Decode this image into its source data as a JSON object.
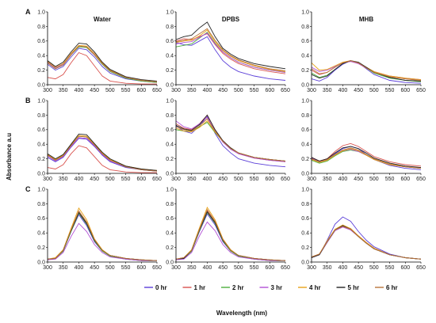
{
  "chart_data": {
    "type": "line",
    "ylabel": "Absorbance a.u",
    "xlabel": "Wavelength (nm)",
    "xlim": [
      300,
      650
    ],
    "xticks": [
      "300",
      "350",
      "400",
      "450",
      "500",
      "550",
      "600",
      "650"
    ],
    "ylim": [
      0.0,
      1.0
    ],
    "yticks": [
      "0.0",
      "0.2",
      "0.4",
      "0.6",
      "0.8",
      "1.0"
    ],
    "column_titles": [
      "Water",
      "DPBS",
      "MHB"
    ],
    "row_labels": [
      "A",
      "B",
      "C"
    ],
    "legend": {
      "placement": "bottom",
      "entries": [
        {
          "name": "0 hr",
          "color": "#5b3fd8"
        },
        {
          "name": "1 hr",
          "color": "#d9534f"
        },
        {
          "name": "2 hr",
          "color": "#4caf3d"
        },
        {
          "name": "3 hr",
          "color": "#b24fd6"
        },
        {
          "name": "4 hr",
          "color": "#e8a21a"
        },
        {
          "name": "5 hr",
          "color": "#222222"
        },
        {
          "name": "6 hr",
          "color": "#b8743c"
        }
      ]
    },
    "x": [
      300,
      325,
      350,
      375,
      400,
      425,
      450,
      475,
      500,
      550,
      600,
      650
    ],
    "panels": [
      {
        "row": "A",
        "column": "Water",
        "series": [
          [
            0.28,
            0.2,
            0.25,
            0.38,
            0.5,
            0.48,
            0.38,
            0.25,
            0.16,
            0.08,
            0.05,
            0.03
          ],
          [
            0.1,
            0.08,
            0.14,
            0.3,
            0.44,
            0.4,
            0.26,
            0.12,
            0.05,
            0.02,
            0.01,
            0.01
          ],
          [
            0.3,
            0.22,
            0.27,
            0.41,
            0.52,
            0.51,
            0.41,
            0.28,
            0.18,
            0.09,
            0.05,
            0.03
          ],
          [
            0.31,
            0.23,
            0.28,
            0.42,
            0.53,
            0.52,
            0.42,
            0.29,
            0.19,
            0.1,
            0.06,
            0.04
          ],
          [
            0.32,
            0.24,
            0.29,
            0.43,
            0.54,
            0.53,
            0.43,
            0.3,
            0.2,
            0.1,
            0.06,
            0.04
          ],
          [
            0.33,
            0.25,
            0.31,
            0.45,
            0.57,
            0.56,
            0.45,
            0.31,
            0.21,
            0.11,
            0.07,
            0.05
          ],
          [
            0.3,
            0.22,
            0.27,
            0.41,
            0.53,
            0.52,
            0.41,
            0.29,
            0.19,
            0.1,
            0.06,
            0.04
          ]
        ]
      },
      {
        "row": "A",
        "column": "DPBS",
        "series": [
          [
            0.58,
            0.55,
            0.54,
            0.6,
            0.66,
            0.48,
            0.33,
            0.24,
            0.18,
            0.12,
            0.08,
            0.06
          ],
          [
            0.6,
            0.63,
            0.62,
            0.66,
            0.7,
            0.55,
            0.43,
            0.35,
            0.29,
            0.22,
            0.18,
            0.15
          ],
          [
            0.52,
            0.54,
            0.56,
            0.64,
            0.72,
            0.57,
            0.45,
            0.37,
            0.31,
            0.24,
            0.2,
            0.17
          ],
          [
            0.56,
            0.58,
            0.59,
            0.65,
            0.71,
            0.56,
            0.45,
            0.37,
            0.31,
            0.24,
            0.2,
            0.17
          ],
          [
            0.58,
            0.6,
            0.61,
            0.67,
            0.75,
            0.59,
            0.47,
            0.39,
            0.33,
            0.26,
            0.21,
            0.18
          ],
          [
            0.62,
            0.66,
            0.68,
            0.78,
            0.86,
            0.66,
            0.5,
            0.42,
            0.36,
            0.29,
            0.25,
            0.22
          ],
          [
            0.59,
            0.61,
            0.63,
            0.7,
            0.77,
            0.61,
            0.48,
            0.4,
            0.34,
            0.27,
            0.22,
            0.19
          ]
        ]
      },
      {
        "row": "A",
        "column": "MHB",
        "series": [
          [
            0.08,
            0.05,
            0.1,
            0.2,
            0.28,
            0.33,
            0.3,
            0.22,
            0.14,
            0.06,
            0.03,
            0.02
          ],
          [
            0.2,
            0.14,
            0.17,
            0.24,
            0.3,
            0.32,
            0.29,
            0.23,
            0.17,
            0.11,
            0.08,
            0.06
          ],
          [
            0.16,
            0.1,
            0.13,
            0.21,
            0.29,
            0.33,
            0.3,
            0.23,
            0.16,
            0.09,
            0.06,
            0.04
          ],
          [
            0.24,
            0.18,
            0.2,
            0.25,
            0.3,
            0.32,
            0.29,
            0.23,
            0.18,
            0.12,
            0.09,
            0.07
          ],
          [
            0.3,
            0.2,
            0.21,
            0.26,
            0.31,
            0.33,
            0.3,
            0.24,
            0.18,
            0.12,
            0.09,
            0.07
          ],
          [
            0.14,
            0.09,
            0.12,
            0.21,
            0.29,
            0.33,
            0.31,
            0.24,
            0.17,
            0.1,
            0.06,
            0.05
          ],
          [
            0.22,
            0.15,
            0.17,
            0.24,
            0.3,
            0.33,
            0.3,
            0.23,
            0.17,
            0.11,
            0.08,
            0.06
          ]
        ]
      },
      {
        "row": "B",
        "column": "Water",
        "series": [
          [
            0.22,
            0.16,
            0.22,
            0.36,
            0.48,
            0.47,
            0.37,
            0.25,
            0.16,
            0.08,
            0.05,
            0.03
          ],
          [
            0.08,
            0.06,
            0.12,
            0.27,
            0.38,
            0.35,
            0.23,
            0.11,
            0.05,
            0.02,
            0.01,
            0.01
          ],
          [
            0.25,
            0.18,
            0.24,
            0.38,
            0.51,
            0.5,
            0.39,
            0.27,
            0.18,
            0.09,
            0.05,
            0.03
          ],
          [
            0.24,
            0.17,
            0.23,
            0.37,
            0.49,
            0.48,
            0.38,
            0.26,
            0.17,
            0.09,
            0.05,
            0.03
          ],
          [
            0.26,
            0.19,
            0.25,
            0.39,
            0.52,
            0.51,
            0.4,
            0.28,
            0.19,
            0.1,
            0.06,
            0.04
          ],
          [
            0.27,
            0.2,
            0.26,
            0.4,
            0.54,
            0.53,
            0.41,
            0.29,
            0.2,
            0.1,
            0.06,
            0.04
          ],
          [
            0.25,
            0.18,
            0.24,
            0.38,
            0.51,
            0.5,
            0.39,
            0.27,
            0.18,
            0.09,
            0.05,
            0.03
          ]
        ]
      },
      {
        "row": "B",
        "column": "DPBS",
        "series": [
          [
            0.65,
            0.58,
            0.55,
            0.65,
            0.78,
            0.55,
            0.38,
            0.28,
            0.2,
            0.14,
            0.11,
            0.09
          ],
          [
            0.68,
            0.62,
            0.6,
            0.68,
            0.8,
            0.6,
            0.44,
            0.34,
            0.27,
            0.21,
            0.18,
            0.16
          ],
          [
            0.6,
            0.58,
            0.58,
            0.64,
            0.7,
            0.56,
            0.44,
            0.34,
            0.28,
            0.22,
            0.19,
            0.17
          ],
          [
            0.72,
            0.64,
            0.61,
            0.68,
            0.77,
            0.58,
            0.43,
            0.33,
            0.27,
            0.21,
            0.18,
            0.16
          ],
          [
            0.62,
            0.58,
            0.57,
            0.63,
            0.72,
            0.57,
            0.44,
            0.35,
            0.28,
            0.22,
            0.19,
            0.17
          ],
          [
            0.66,
            0.61,
            0.59,
            0.67,
            0.8,
            0.6,
            0.45,
            0.35,
            0.28,
            0.22,
            0.19,
            0.17
          ],
          [
            0.64,
            0.6,
            0.58,
            0.65,
            0.75,
            0.58,
            0.44,
            0.34,
            0.28,
            0.22,
            0.19,
            0.17
          ]
        ]
      },
      {
        "row": "B",
        "column": "MHB",
        "series": [
          [
            0.2,
            0.16,
            0.19,
            0.27,
            0.34,
            0.37,
            0.34,
            0.26,
            0.19,
            0.11,
            0.07,
            0.05
          ],
          [
            0.22,
            0.17,
            0.2,
            0.3,
            0.38,
            0.41,
            0.37,
            0.3,
            0.23,
            0.16,
            0.12,
            0.1
          ],
          [
            0.18,
            0.14,
            0.17,
            0.24,
            0.3,
            0.32,
            0.3,
            0.25,
            0.19,
            0.12,
            0.09,
            0.07
          ],
          [
            0.21,
            0.16,
            0.19,
            0.26,
            0.31,
            0.33,
            0.3,
            0.25,
            0.19,
            0.12,
            0.09,
            0.07
          ],
          [
            0.19,
            0.15,
            0.18,
            0.25,
            0.31,
            0.34,
            0.31,
            0.25,
            0.19,
            0.12,
            0.09,
            0.07
          ],
          [
            0.22,
            0.17,
            0.2,
            0.28,
            0.35,
            0.37,
            0.34,
            0.28,
            0.21,
            0.14,
            0.1,
            0.08
          ],
          [
            0.2,
            0.16,
            0.19,
            0.26,
            0.32,
            0.35,
            0.32,
            0.26,
            0.2,
            0.13,
            0.09,
            0.07
          ]
        ]
      },
      {
        "row": "C",
        "column": "Water",
        "series": [
          [
            0.04,
            0.05,
            0.15,
            0.42,
            0.65,
            0.5,
            0.28,
            0.15,
            0.08,
            0.04,
            0.02,
            0.02
          ],
          [
            0.04,
            0.05,
            0.16,
            0.44,
            0.7,
            0.54,
            0.3,
            0.16,
            0.09,
            0.05,
            0.03,
            0.02
          ],
          [
            0.04,
            0.05,
            0.15,
            0.42,
            0.67,
            0.52,
            0.29,
            0.15,
            0.08,
            0.04,
            0.02,
            0.02
          ],
          [
            0.03,
            0.04,
            0.13,
            0.35,
            0.53,
            0.42,
            0.24,
            0.13,
            0.07,
            0.04,
            0.02,
            0.02
          ],
          [
            0.04,
            0.06,
            0.17,
            0.46,
            0.74,
            0.58,
            0.32,
            0.17,
            0.09,
            0.05,
            0.03,
            0.02
          ],
          [
            0.04,
            0.05,
            0.16,
            0.43,
            0.68,
            0.53,
            0.3,
            0.16,
            0.09,
            0.05,
            0.03,
            0.02
          ],
          [
            0.04,
            0.05,
            0.16,
            0.44,
            0.7,
            0.55,
            0.31,
            0.16,
            0.09,
            0.05,
            0.03,
            0.02
          ]
        ]
      },
      {
        "row": "C",
        "column": "DPBS",
        "series": [
          [
            0.04,
            0.05,
            0.15,
            0.42,
            0.66,
            0.51,
            0.28,
            0.15,
            0.08,
            0.04,
            0.02,
            0.02
          ],
          [
            0.04,
            0.06,
            0.16,
            0.45,
            0.71,
            0.55,
            0.3,
            0.16,
            0.09,
            0.05,
            0.03,
            0.02
          ],
          [
            0.04,
            0.05,
            0.15,
            0.43,
            0.68,
            0.53,
            0.29,
            0.15,
            0.08,
            0.04,
            0.02,
            0.02
          ],
          [
            0.03,
            0.04,
            0.13,
            0.36,
            0.55,
            0.43,
            0.24,
            0.13,
            0.07,
            0.04,
            0.02,
            0.02
          ],
          [
            0.04,
            0.06,
            0.17,
            0.47,
            0.75,
            0.58,
            0.32,
            0.17,
            0.09,
            0.05,
            0.03,
            0.02
          ],
          [
            0.04,
            0.05,
            0.16,
            0.44,
            0.69,
            0.54,
            0.3,
            0.16,
            0.09,
            0.05,
            0.03,
            0.02
          ],
          [
            0.04,
            0.06,
            0.16,
            0.45,
            0.72,
            0.56,
            0.31,
            0.16,
            0.09,
            0.05,
            0.03,
            0.02
          ]
        ]
      },
      {
        "row": "C",
        "column": "MHB",
        "series": [
          [
            0.06,
            0.1,
            0.3,
            0.52,
            0.62,
            0.56,
            0.42,
            0.3,
            0.21,
            0.11,
            0.06,
            0.04
          ],
          [
            0.07,
            0.11,
            0.28,
            0.44,
            0.5,
            0.46,
            0.36,
            0.27,
            0.19,
            0.1,
            0.06,
            0.04
          ],
          [
            0.06,
            0.1,
            0.27,
            0.43,
            0.49,
            0.45,
            0.35,
            0.26,
            0.18,
            0.1,
            0.06,
            0.04
          ],
          [
            0.06,
            0.1,
            0.27,
            0.43,
            0.48,
            0.44,
            0.35,
            0.26,
            0.18,
            0.1,
            0.06,
            0.04
          ],
          [
            0.07,
            0.11,
            0.29,
            0.45,
            0.51,
            0.46,
            0.36,
            0.27,
            0.19,
            0.1,
            0.06,
            0.04
          ],
          [
            0.06,
            0.1,
            0.28,
            0.44,
            0.5,
            0.45,
            0.35,
            0.26,
            0.18,
            0.1,
            0.06,
            0.04
          ],
          [
            0.07,
            0.11,
            0.28,
            0.44,
            0.49,
            0.45,
            0.35,
            0.26,
            0.18,
            0.1,
            0.06,
            0.04
          ]
        ]
      }
    ]
  }
}
